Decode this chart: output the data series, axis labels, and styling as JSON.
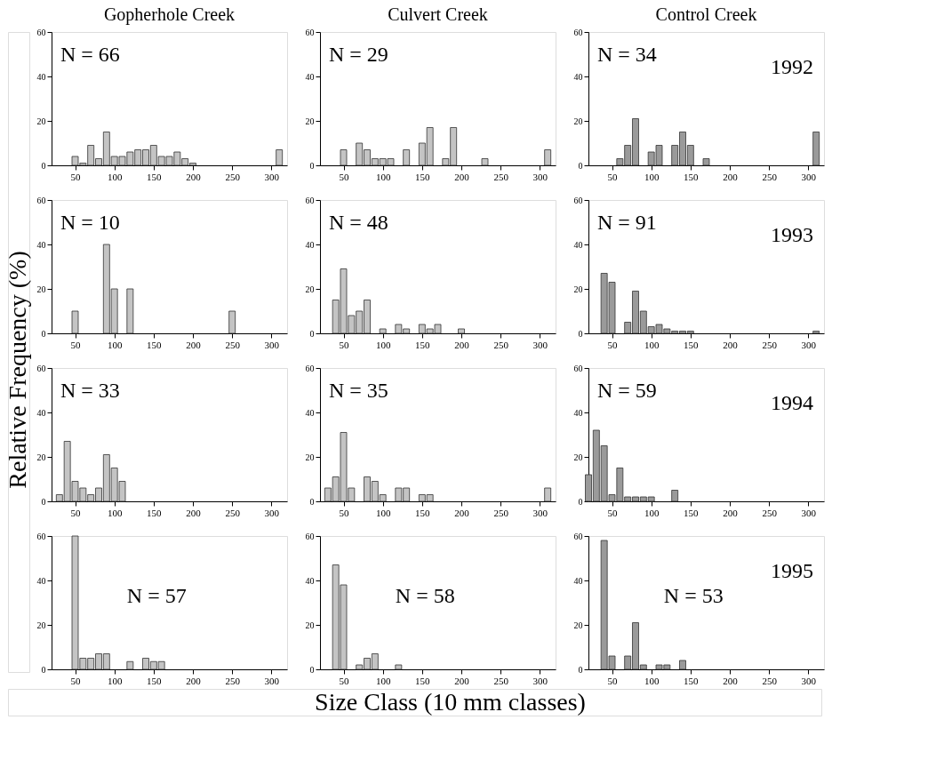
{
  "chart_data": [
    {
      "type": "bar",
      "title": "Gopherhole Creek",
      "ylabel": "Relative Frequency (%)",
      "x": [
        50,
        60,
        70,
        80,
        90,
        100,
        110,
        120,
        130,
        140,
        150,
        160,
        170,
        180,
        190,
        200,
        310
      ],
      "values": [
        4,
        1,
        9,
        3,
        15,
        4,
        4,
        6,
        7,
        7,
        9,
        4,
        4,
        6,
        3,
        1,
        7
      ],
      "color": "#c4c4c4",
      "xlim": [
        20,
        320
      ],
      "xticks": [
        50,
        100,
        150,
        200,
        250,
        300
      ],
      "ylim": [
        0,
        60
      ],
      "yticks": [
        0,
        20,
        40,
        60
      ],
      "annotations": [
        "N = 66"
      ]
    },
    {
      "type": "bar",
      "title": "Culvert Creek",
      "x": [
        50,
        70,
        80,
        90,
        100,
        110,
        130,
        150,
        160,
        180,
        190,
        230,
        310
      ],
      "values": [
        7,
        10,
        7,
        3,
        3,
        3,
        7,
        10,
        17,
        3,
        17,
        3,
        7
      ],
      "color": "#c4c4c4",
      "xlim": [
        20,
        320
      ],
      "xticks": [
        50,
        100,
        150,
        200,
        250,
        300
      ],
      "ylim": [
        0,
        60
      ],
      "yticks": [
        0,
        20,
        40,
        60
      ],
      "annotations": [
        "N = 29"
      ]
    },
    {
      "type": "bar",
      "title": "Control Creek",
      "x": [
        60,
        70,
        80,
        100,
        110,
        130,
        140,
        150,
        170,
        310
      ],
      "values": [
        3,
        9,
        21,
        6,
        9,
        9,
        15,
        9,
        3,
        15
      ],
      "color": "#9a9a9a",
      "xlim": [
        20,
        320
      ],
      "xticks": [
        50,
        100,
        150,
        200,
        250,
        300
      ],
      "ylim": [
        0,
        60
      ],
      "yticks": [
        0,
        20,
        40,
        60
      ],
      "annotations": [
        "N = 34",
        "1992"
      ]
    },
    {
      "type": "bar",
      "x": [
        50,
        90,
        100,
        120,
        250
      ],
      "values": [
        10,
        40,
        20,
        20,
        10
      ],
      "color": "#c4c4c4",
      "xlim": [
        20,
        320
      ],
      "xticks": [
        50,
        100,
        150,
        200,
        250,
        300
      ],
      "ylim": [
        0,
        60
      ],
      "yticks": [
        0,
        20,
        40,
        60
      ],
      "annotations": [
        "N = 10"
      ]
    },
    {
      "type": "bar",
      "x": [
        40,
        50,
        60,
        70,
        80,
        100,
        120,
        130,
        150,
        160,
        170,
        200
      ],
      "values": [
        15,
        29,
        8,
        10,
        15,
        2,
        4,
        2,
        4,
        2,
        4,
        2
      ],
      "color": "#c4c4c4",
      "xlim": [
        20,
        320
      ],
      "xticks": [
        50,
        100,
        150,
        200,
        250,
        300
      ],
      "ylim": [
        0,
        60
      ],
      "yticks": [
        0,
        20,
        40,
        60
      ],
      "annotations": [
        "N = 48"
      ]
    },
    {
      "type": "bar",
      "x": [
        40,
        50,
        70,
        80,
        90,
        100,
        110,
        120,
        130,
        140,
        150,
        310
      ],
      "values": [
        27,
        23,
        5,
        19,
        10,
        3,
        4,
        2,
        1,
        1,
        1,
        1
      ],
      "color": "#9a9a9a",
      "xlim": [
        20,
        320
      ],
      "xticks": [
        50,
        100,
        150,
        200,
        250,
        300
      ],
      "ylim": [
        0,
        60
      ],
      "yticks": [
        0,
        20,
        40,
        60
      ],
      "annotations": [
        "N = 91",
        "1993"
      ]
    },
    {
      "type": "bar",
      "x": [
        30,
        40,
        50,
        60,
        70,
        80,
        90,
        100,
        110
      ],
      "values": [
        3,
        27,
        9,
        6,
        3,
        6,
        21,
        15,
        9
      ],
      "color": "#c4c4c4",
      "xlim": [
        20,
        320
      ],
      "xticks": [
        50,
        100,
        150,
        200,
        250,
        300
      ],
      "ylim": [
        0,
        60
      ],
      "yticks": [
        0,
        20,
        40,
        60
      ],
      "annotations": [
        "N = 33"
      ]
    },
    {
      "type": "bar",
      "x": [
        30,
        40,
        50,
        60,
        80,
        90,
        100,
        120,
        130,
        150,
        160,
        310
      ],
      "values": [
        6,
        11,
        31,
        6,
        11,
        9,
        3,
        6,
        6,
        3,
        3,
        6
      ],
      "color": "#c4c4c4",
      "xlim": [
        20,
        320
      ],
      "xticks": [
        50,
        100,
        150,
        200,
        250,
        300
      ],
      "ylim": [
        0,
        60
      ],
      "yticks": [
        0,
        20,
        40,
        60
      ],
      "annotations": [
        "N = 35"
      ]
    },
    {
      "type": "bar",
      "x": [
        20,
        30,
        40,
        50,
        60,
        70,
        80,
        90,
        100,
        130
      ],
      "values": [
        12,
        32,
        25,
        3,
        15,
        2,
        2,
        2,
        2,
        5
      ],
      "color": "#9a9a9a",
      "xlim": [
        20,
        320
      ],
      "xticks": [
        50,
        100,
        150,
        200,
        250,
        300
      ],
      "ylim": [
        0,
        60
      ],
      "yticks": [
        0,
        20,
        40,
        60
      ],
      "annotations": [
        "N = 59",
        "1994"
      ]
    },
    {
      "type": "bar",
      "x": [
        50,
        60,
        70,
        80,
        90,
        120,
        140,
        150,
        160
      ],
      "values": [
        60,
        5,
        5,
        7,
        7,
        3.5,
        5,
        3.5,
        3.5
      ],
      "color": "#c4c4c4",
      "xlim": [
        20,
        320
      ],
      "xticks": [
        50,
        100,
        150,
        200,
        250,
        300
      ],
      "ylim": [
        0,
        60
      ],
      "yticks": [
        0,
        20,
        40,
        60
      ],
      "annotations": [
        "N = 57"
      ]
    },
    {
      "type": "bar",
      "xlabel": "Size Class (10 mm classes)",
      "x": [
        40,
        50,
        70,
        80,
        90,
        120
      ],
      "values": [
        47,
        38,
        2,
        5,
        7,
        2
      ],
      "color": "#c4c4c4",
      "xlim": [
        20,
        320
      ],
      "xticks": [
        50,
        100,
        150,
        200,
        250,
        300
      ],
      "ylim": [
        0,
        60
      ],
      "yticks": [
        0,
        20,
        40,
        60
      ],
      "annotations": [
        "N = 58"
      ]
    },
    {
      "type": "bar",
      "x": [
        40,
        50,
        70,
        80,
        90,
        110,
        120,
        140
      ],
      "values": [
        58,
        6,
        6,
        21,
        2,
        2,
        2,
        4
      ],
      "color": "#9a9a9a",
      "xlim": [
        20,
        320
      ],
      "xticks": [
        50,
        100,
        150,
        200,
        250,
        300
      ],
      "ylim": [
        0,
        60
      ],
      "yticks": [
        0,
        20,
        40,
        60
      ],
      "annotations": [
        "N = 53",
        "1995"
      ]
    }
  ]
}
